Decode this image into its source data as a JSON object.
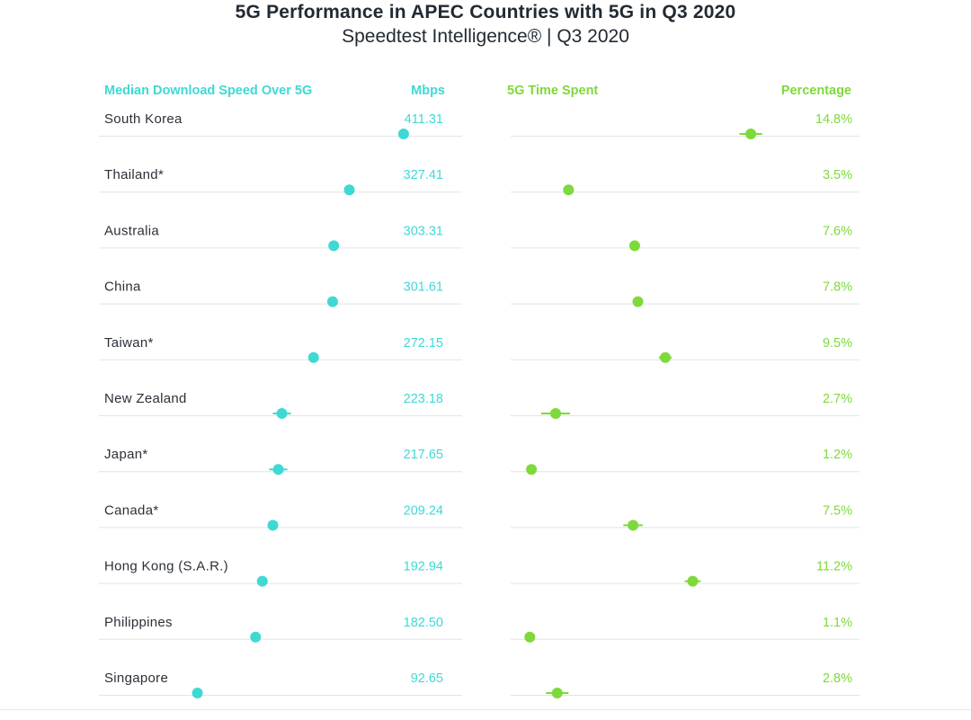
{
  "title": "5G Performance in APEC Countries with 5G in Q3 2020",
  "subtitle": "Speedtest Intelligence® | Q3 2020",
  "colors": {
    "speed": "#3fd9d4",
    "time": "#7ed93a",
    "text": "#2b3038",
    "rule": "#e2e4e6"
  },
  "chart_data": {
    "type": "scatter",
    "title": "5G Performance in APEC Countries with 5G in Q3 2020",
    "subtitle": "Speedtest Intelligence® | Q3 2020",
    "categories": [
      "South Korea",
      "Thailand*",
      "Australia",
      "China",
      "Taiwan*",
      "New Zealand",
      "Japan*",
      "Canada*",
      "Hong Kong (S.A.R.)",
      "Philippines",
      "Singapore"
    ],
    "panels": [
      {
        "header": "Median Download Speed Over 5G",
        "unit": "Mbps",
        "value_labels": [
          "411.31",
          "327.41",
          "303.31",
          "301.61",
          "272.15",
          "223.18",
          "217.65",
          "209.24",
          "192.94",
          "182.50",
          "92.65"
        ],
        "values": [
          411.31,
          327.41,
          303.31,
          301.61,
          272.15,
          223.18,
          217.65,
          209.24,
          192.94,
          182.5,
          92.65
        ],
        "errors": [
          3,
          4,
          3,
          3,
          4,
          14,
          14,
          5,
          4,
          4,
          4
        ],
        "xlim": [
          0,
          480
        ]
      },
      {
        "header": "5G Time Spent",
        "unit": "Percentage",
        "value_labels": [
          "14.8%",
          "3.5%",
          "7.6%",
          "7.8%",
          "9.5%",
          "2.7%",
          "1.2%",
          "7.5%",
          "11.2%",
          "1.1%",
          "2.8%"
        ],
        "values": [
          14.8,
          3.5,
          7.6,
          7.8,
          9.5,
          2.7,
          1.2,
          7.5,
          11.2,
          1.1,
          2.8
        ],
        "errors": [
          0.7,
          0.3,
          0.3,
          0.3,
          0.4,
          0.9,
          0.2,
          0.6,
          0.5,
          0.2,
          0.7
        ],
        "xlim": [
          0,
          20
        ]
      }
    ]
  }
}
